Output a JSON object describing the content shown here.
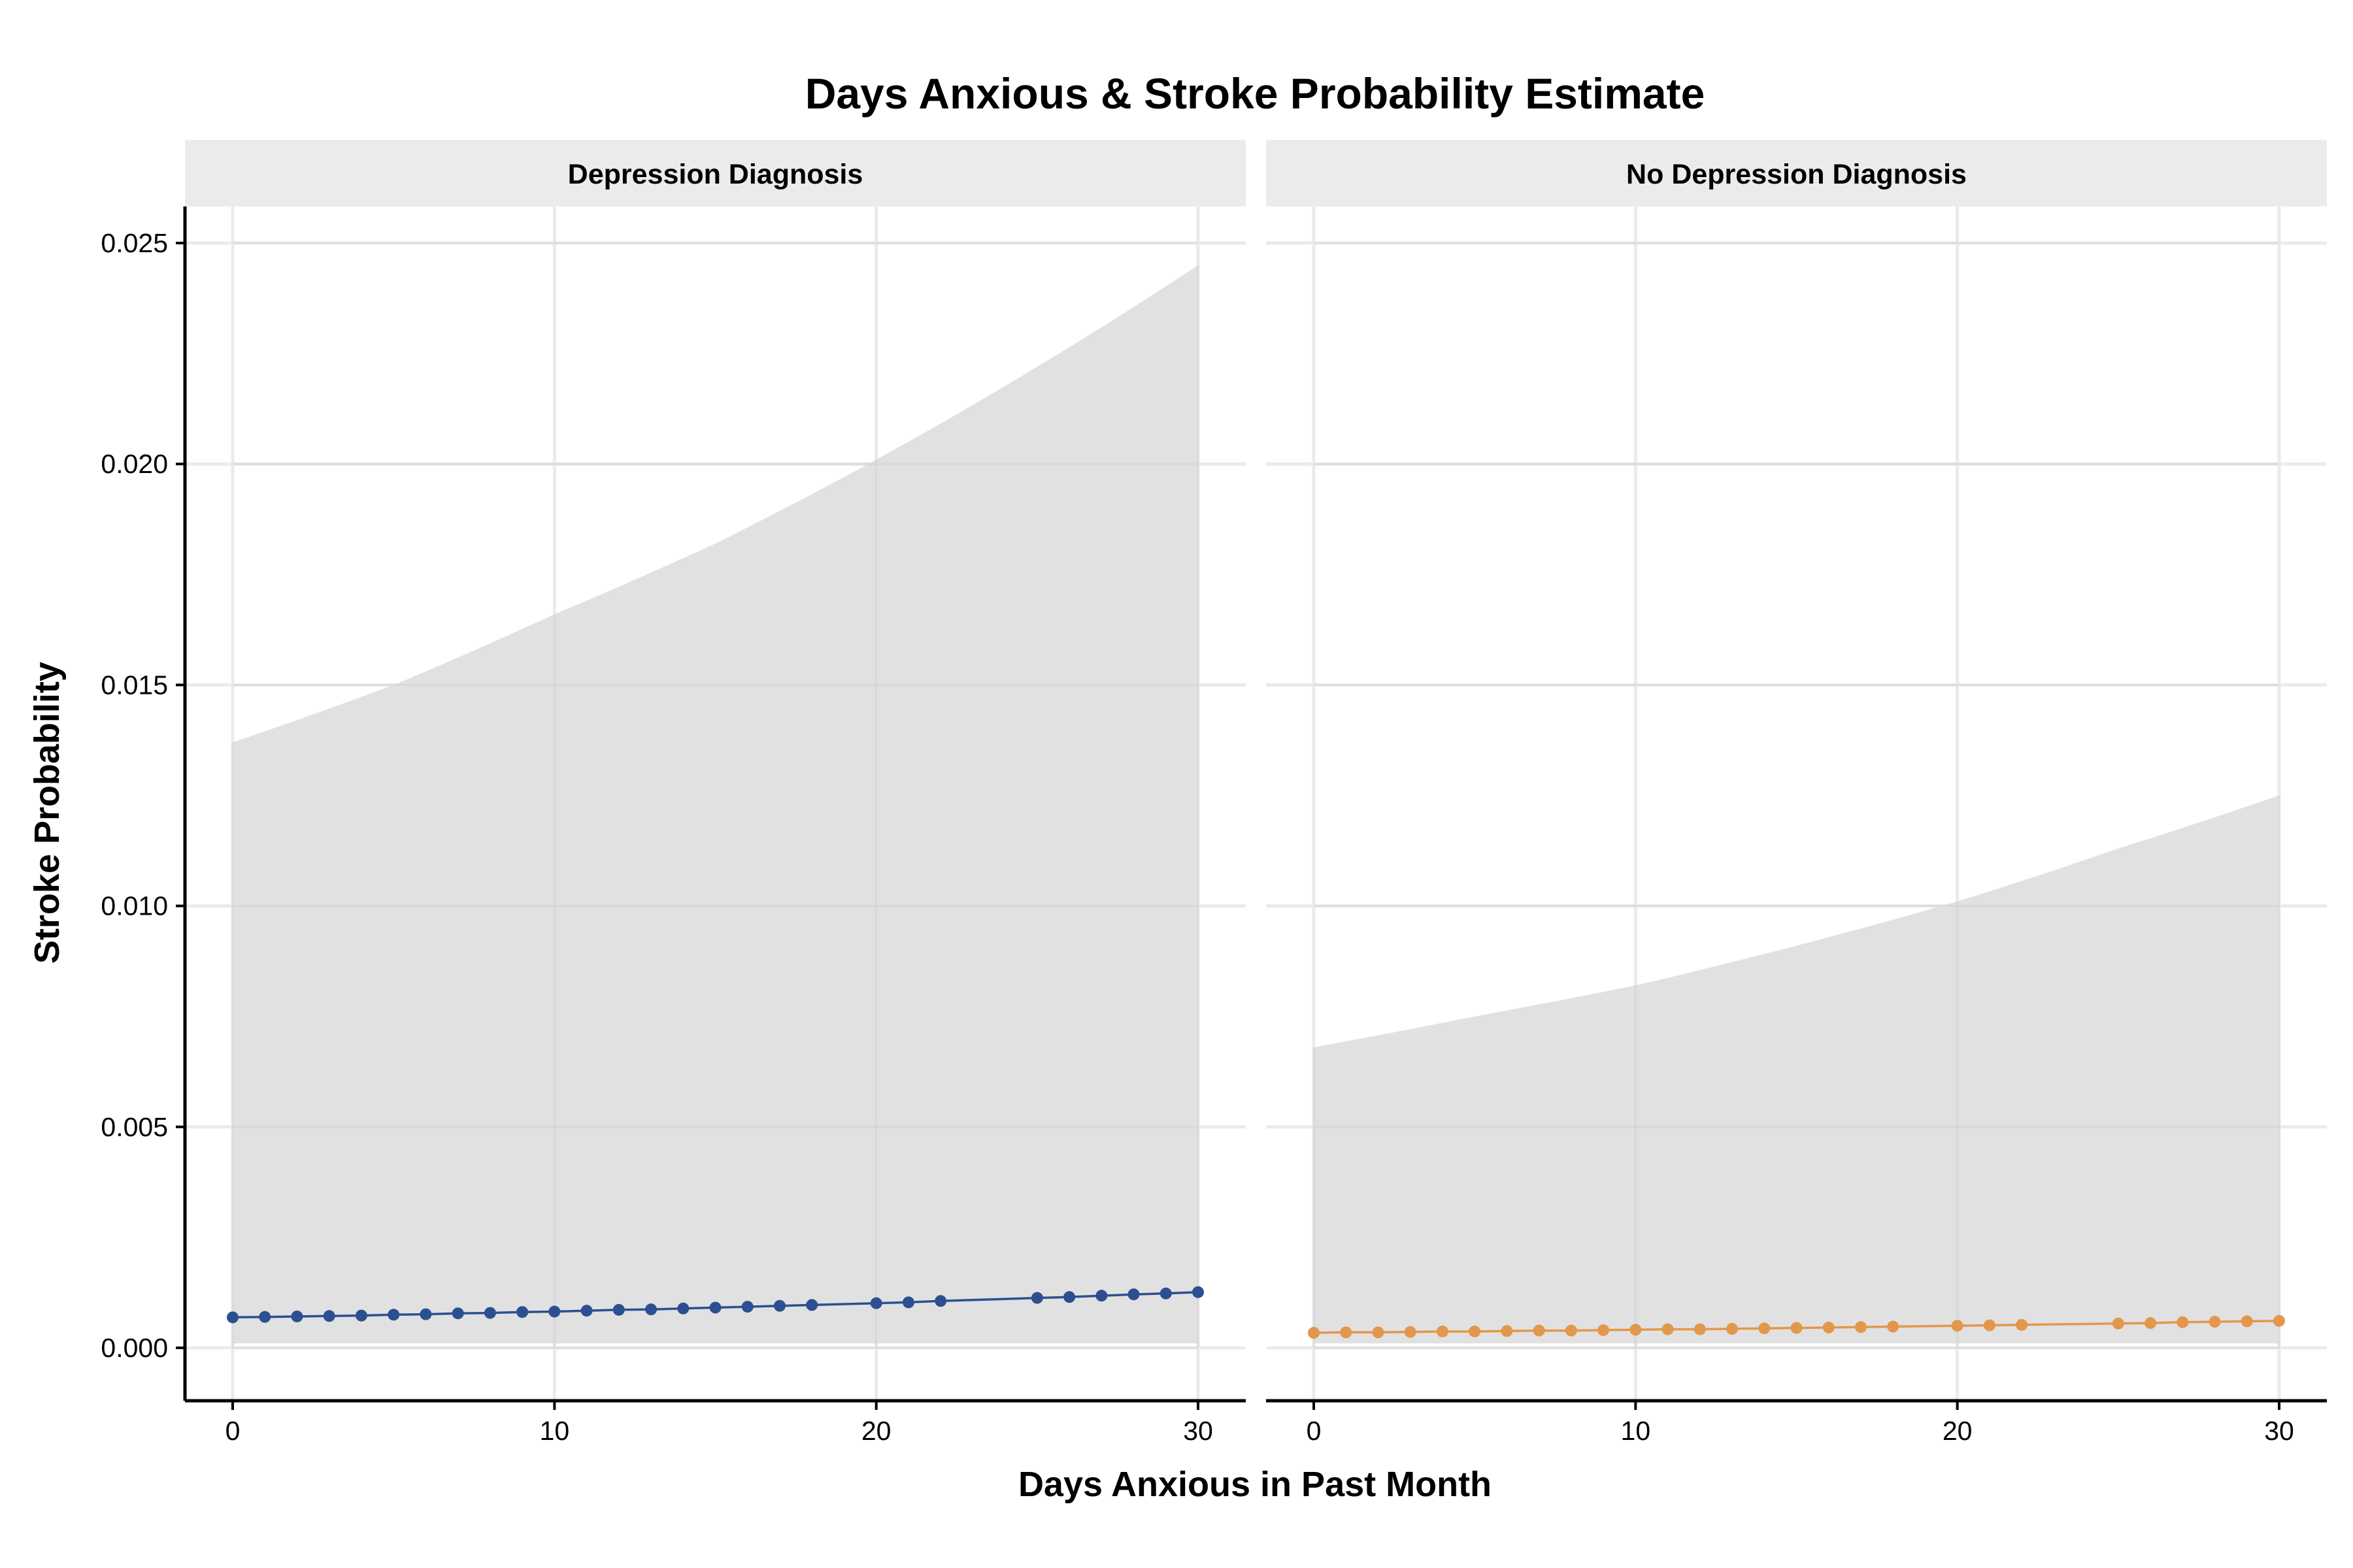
{
  "chart_data": {
    "type": "line",
    "title": "Days Anxious & Stroke Probability Estimate",
    "xlabel": "Days Anxious in Past Month",
    "ylabel": "Stroke Probability",
    "xlim": [
      0,
      30
    ],
    "ylim": [
      0,
      0.025
    ],
    "x_ticks": [
      "0",
      "10",
      "20",
      "30"
    ],
    "y_ticks": [
      "0.000",
      "0.005",
      "0.010",
      "0.015",
      "0.020",
      "0.025"
    ],
    "grid": true,
    "legend": "none",
    "panels": [
      {
        "label": "Depression Diagnosis",
        "color": "#2b4f91",
        "ribbon_color": "#dedede",
        "x": [
          0,
          1,
          2,
          3,
          4,
          5,
          6,
          7,
          8,
          9,
          10,
          11,
          12,
          13,
          14,
          15,
          16,
          17,
          18,
          20,
          21,
          22,
          25,
          26,
          27,
          28,
          29,
          30
        ],
        "y": [
          0.00069,
          0.0007,
          0.00071,
          0.00072,
          0.00073,
          0.00075,
          0.00076,
          0.00078,
          0.00079,
          0.00081,
          0.00082,
          0.00084,
          0.00086,
          0.00087,
          0.00089,
          0.00091,
          0.00093,
          0.00095,
          0.00097,
          0.00101,
          0.00103,
          0.00106,
          0.00113,
          0.00115,
          0.00118,
          0.00121,
          0.00123,
          0.00126
        ],
        "ribbon_x": [
          0,
          5,
          10,
          15,
          20,
          25,
          30
        ],
        "ribbon_lower": [
          0.0001,
          0.0001,
          0.0001,
          0.0001,
          0.0001,
          0.0001,
          0.0001
        ],
        "ribbon_upper": [
          0.0137,
          0.015,
          0.0166,
          0.0182,
          0.0201,
          0.0222,
          0.0245
        ]
      },
      {
        "label": "No Depression Diagnosis",
        "color": "#e3974a",
        "ribbon_color": "#dedede",
        "x": [
          0,
          1,
          2,
          3,
          4,
          5,
          6,
          7,
          8,
          9,
          10,
          11,
          12,
          13,
          14,
          15,
          16,
          17,
          18,
          20,
          21,
          22,
          25,
          26,
          27,
          28,
          29,
          30
        ],
        "y": [
          0.00034,
          0.00035,
          0.00035,
          0.00036,
          0.00037,
          0.00037,
          0.00038,
          0.00039,
          0.00039,
          0.0004,
          0.00041,
          0.00042,
          0.00042,
          0.00043,
          0.00044,
          0.00045,
          0.00046,
          0.00047,
          0.00048,
          0.0005,
          0.00051,
          0.00052,
          0.00055,
          0.00056,
          0.00058,
          0.00059,
          0.0006,
          0.00061
        ],
        "ribbon_x": [
          0,
          5,
          10,
          15,
          20,
          25,
          30
        ],
        "ribbon_lower": [
          0.0001,
          0.0001,
          0.0001,
          0.0001,
          0.0001,
          0.0001,
          0.0001
        ],
        "ribbon_upper": [
          0.0068,
          0.0075,
          0.0082,
          0.0091,
          0.0101,
          0.0113,
          0.0125
        ]
      }
    ]
  }
}
